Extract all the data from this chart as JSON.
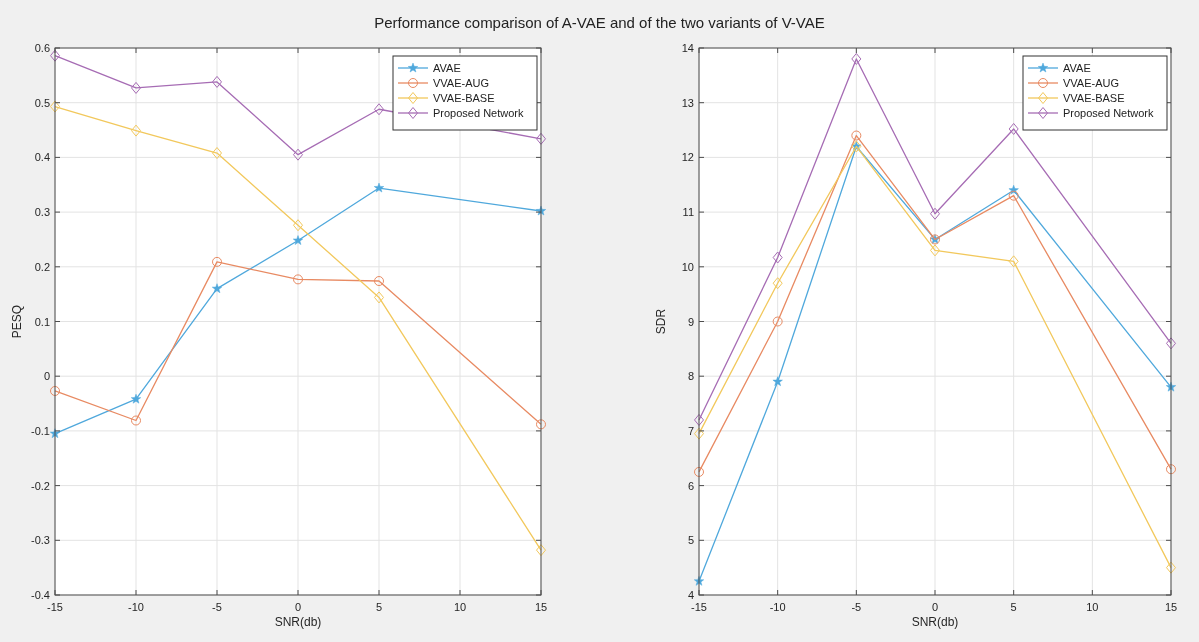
{
  "chart_data": [
    {
      "type": "line",
      "title": "Performance comparison of A-VAE and of the two variants of V-VAE",
      "xlabel": "SNR(db)",
      "ylabel": "PESQ",
      "x": [
        -15,
        -10,
        -5,
        0,
        5,
        15
      ],
      "xlim": [
        -15,
        15
      ],
      "xticks": [
        -15,
        -10,
        -5,
        0,
        5,
        10,
        15
      ],
      "ylim": [
        -0.4,
        0.6
      ],
      "yticks": [
        -0.4,
        -0.3,
        -0.2,
        -0.1,
        0,
        0.1,
        0.2,
        0.3,
        0.4,
        0.5,
        0.6
      ],
      "grid": true,
      "legend": "top right",
      "series": [
        {
          "name": "AVAE",
          "color": "#4fa8dc",
          "marker": "star",
          "values": [
            -0.105,
            -0.042,
            0.16,
            0.248,
            0.344,
            0.302
          ]
        },
        {
          "name": "VVAE-AUG",
          "color": "#e88a62",
          "marker": "circle",
          "values": [
            -0.027,
            -0.081,
            0.209,
            0.177,
            0.174,
            -0.088
          ]
        },
        {
          "name": "VVAE-BASE",
          "color": "#f2c85c",
          "marker": "diamond",
          "values": [
            0.493,
            0.449,
            0.408,
            0.276,
            0.144,
            -0.318
          ]
        },
        {
          "name": "Proposed Network",
          "color": "#a66cb4",
          "marker": "diamond",
          "values": [
            0.586,
            0.527,
            0.538,
            0.405,
            0.488,
            0.434
          ]
        }
      ]
    },
    {
      "type": "line",
      "xlabel": "SNR(db)",
      "ylabel": "SDR",
      "x": [
        -15,
        -10,
        -5,
        0,
        5,
        15
      ],
      "xlim": [
        -15,
        15
      ],
      "xticks": [
        -15,
        -10,
        -5,
        0,
        5,
        10,
        15
      ],
      "ylim": [
        4,
        14
      ],
      "yticks": [
        4,
        5,
        6,
        7,
        8,
        9,
        10,
        11,
        12,
        13,
        14
      ],
      "grid": true,
      "legend": "top right",
      "series": [
        {
          "name": "AVAE",
          "color": "#4fa8dc",
          "marker": "star",
          "values": [
            4.25,
            7.9,
            12.2,
            10.5,
            11.4,
            7.8
          ]
        },
        {
          "name": "VVAE-AUG",
          "color": "#e88a62",
          "marker": "circle",
          "values": [
            6.25,
            9.0,
            12.4,
            10.5,
            11.3,
            6.3
          ]
        },
        {
          "name": "VVAE-BASE",
          "color": "#f2c85c",
          "marker": "diamond",
          "values": [
            6.95,
            9.7,
            12.2,
            10.3,
            10.1,
            4.5
          ]
        },
        {
          "name": "Proposed Network",
          "color": "#a66cb4",
          "marker": "diamond",
          "values": [
            7.2,
            10.17,
            13.8,
            10.97,
            12.52,
            8.6
          ]
        }
      ]
    }
  ]
}
